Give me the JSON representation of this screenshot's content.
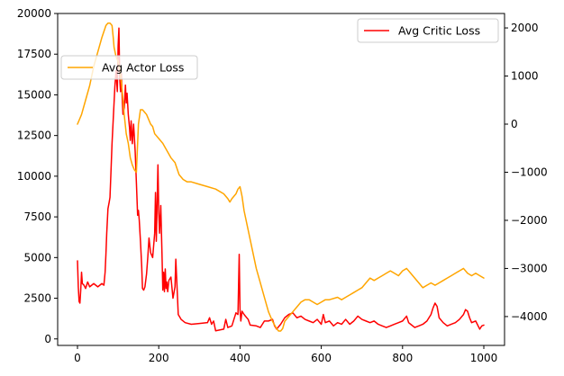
{
  "chart_data": {
    "type": "line",
    "x_range": [
      0,
      1000
    ],
    "x_ticks": [
      0,
      200,
      400,
      600,
      800,
      1000
    ],
    "left_axis": {
      "range": [
        -400,
        20000
      ],
      "ticks": [
        0,
        2500,
        5000,
        7500,
        10000,
        12500,
        15000,
        17500,
        20000
      ]
    },
    "right_axis": {
      "range": [
        -4600,
        2300
      ],
      "ticks": [
        -4000,
        -3000,
        -2000,
        -1000,
        0,
        1000,
        2000
      ]
    },
    "series": [
      {
        "name": "Avg Critic Loss",
        "axis": "left",
        "color": "#ff0000",
        "legend_position": "top-right",
        "points": [
          [
            0,
            4800
          ],
          [
            2,
            3200
          ],
          [
            4,
            2300
          ],
          [
            6,
            2200
          ],
          [
            8,
            3000
          ],
          [
            10,
            4100
          ],
          [
            12,
            3400
          ],
          [
            16,
            3300
          ],
          [
            20,
            3100
          ],
          [
            25,
            3500
          ],
          [
            30,
            3200
          ],
          [
            40,
            3400
          ],
          [
            50,
            3200
          ],
          [
            60,
            3400
          ],
          [
            65,
            3300
          ],
          [
            68,
            4100
          ],
          [
            70,
            5200
          ],
          [
            72,
            6500
          ],
          [
            75,
            8000
          ],
          [
            78,
            8400
          ],
          [
            80,
            8700
          ],
          [
            82,
            10000
          ],
          [
            85,
            12000
          ],
          [
            88,
            13500
          ],
          [
            90,
            14500
          ],
          [
            92,
            15500
          ],
          [
            95,
            16500
          ],
          [
            98,
            15200
          ],
          [
            100,
            18000
          ],
          [
            102,
            19100
          ],
          [
            104,
            16000
          ],
          [
            106,
            15200
          ],
          [
            108,
            16300
          ],
          [
            110,
            14800
          ],
          [
            112,
            13800
          ],
          [
            115,
            14200
          ],
          [
            118,
            15600
          ],
          [
            120,
            14500
          ],
          [
            122,
            15100
          ],
          [
            125,
            13800
          ],
          [
            128,
            13000
          ],
          [
            130,
            12200
          ],
          [
            132,
            13400
          ],
          [
            135,
            12000
          ],
          [
            138,
            13200
          ],
          [
            140,
            12400
          ],
          [
            142,
            11500
          ],
          [
            145,
            9600
          ],
          [
            148,
            7600
          ],
          [
            150,
            7900
          ],
          [
            152,
            7300
          ],
          [
            155,
            6000
          ],
          [
            158,
            4500
          ],
          [
            160,
            3100
          ],
          [
            163,
            3000
          ],
          [
            166,
            3200
          ],
          [
            170,
            4000
          ],
          [
            173,
            5000
          ],
          [
            176,
            6200
          ],
          [
            180,
            5300
          ],
          [
            185,
            5000
          ],
          [
            190,
            6500
          ],
          [
            192,
            9000
          ],
          [
            194,
            6000
          ],
          [
            196,
            8300
          ],
          [
            198,
            10700
          ],
          [
            200,
            7800
          ],
          [
            202,
            6500
          ],
          [
            205,
            8200
          ],
          [
            208,
            5200
          ],
          [
            210,
            3000
          ],
          [
            212,
            4100
          ],
          [
            214,
            2900
          ],
          [
            216,
            4300
          ],
          [
            218,
            3100
          ],
          [
            220,
            3500
          ],
          [
            222,
            2900
          ],
          [
            225,
            3600
          ],
          [
            230,
            3800
          ],
          [
            235,
            2500
          ],
          [
            240,
            3200
          ],
          [
            242,
            4900
          ],
          [
            245,
            3200
          ],
          [
            248,
            1500
          ],
          [
            255,
            1200
          ],
          [
            265,
            1000
          ],
          [
            280,
            900
          ],
          [
            300,
            950
          ],
          [
            320,
            1000
          ],
          [
            325,
            1300
          ],
          [
            330,
            900
          ],
          [
            335,
            1100
          ],
          [
            340,
            500
          ],
          [
            360,
            600
          ],
          [
            365,
            1200
          ],
          [
            370,
            700
          ],
          [
            380,
            800
          ],
          [
            385,
            1200
          ],
          [
            390,
            1600
          ],
          [
            395,
            1500
          ],
          [
            398,
            5200
          ],
          [
            400,
            1800
          ],
          [
            402,
            1100
          ],
          [
            405,
            1700
          ],
          [
            410,
            1500
          ],
          [
            420,
            1200
          ],
          [
            425,
            850
          ],
          [
            440,
            800
          ],
          [
            450,
            700
          ],
          [
            460,
            1100
          ],
          [
            470,
            1100
          ],
          [
            480,
            1200
          ],
          [
            485,
            800
          ],
          [
            490,
            600
          ],
          [
            500,
            900
          ],
          [
            510,
            1300
          ],
          [
            520,
            1500
          ],
          [
            530,
            1600
          ],
          [
            540,
            1300
          ],
          [
            550,
            1400
          ],
          [
            560,
            1200
          ],
          [
            570,
            1100
          ],
          [
            580,
            1000
          ],
          [
            590,
            1200
          ],
          [
            600,
            900
          ],
          [
            605,
            1500
          ],
          [
            610,
            1000
          ],
          [
            620,
            1100
          ],
          [
            630,
            800
          ],
          [
            640,
            1000
          ],
          [
            650,
            900
          ],
          [
            660,
            1200
          ],
          [
            670,
            900
          ],
          [
            680,
            1100
          ],
          [
            690,
            1400
          ],
          [
            700,
            1200
          ],
          [
            710,
            1100
          ],
          [
            720,
            1000
          ],
          [
            730,
            1100
          ],
          [
            740,
            900
          ],
          [
            750,
            800
          ],
          [
            760,
            700
          ],
          [
            770,
            800
          ],
          [
            780,
            900
          ],
          [
            790,
            1000
          ],
          [
            800,
            1100
          ],
          [
            810,
            1400
          ],
          [
            815,
            1000
          ],
          [
            820,
            900
          ],
          [
            830,
            700
          ],
          [
            840,
            800
          ],
          [
            850,
            900
          ],
          [
            860,
            1100
          ],
          [
            870,
            1500
          ],
          [
            875,
            1900
          ],
          [
            880,
            2200
          ],
          [
            885,
            2000
          ],
          [
            890,
            1300
          ],
          [
            900,
            1000
          ],
          [
            910,
            800
          ],
          [
            920,
            900
          ],
          [
            930,
            1000
          ],
          [
            940,
            1200
          ],
          [
            950,
            1500
          ],
          [
            955,
            1800
          ],
          [
            960,
            1700
          ],
          [
            965,
            1300
          ],
          [
            970,
            1000
          ],
          [
            980,
            1100
          ],
          [
            990,
            600
          ],
          [
            995,
            800
          ],
          [
            1000,
            850
          ]
        ]
      },
      {
        "name": "Avg Actor Loss",
        "axis": "right",
        "color": "#ffa500",
        "legend_position": "upper-left",
        "points": [
          [
            0,
            0
          ],
          [
            10,
            200
          ],
          [
            20,
            500
          ],
          [
            30,
            800
          ],
          [
            40,
            1200
          ],
          [
            50,
            1500
          ],
          [
            60,
            1800
          ],
          [
            70,
            2050
          ],
          [
            75,
            2100
          ],
          [
            80,
            2100
          ],
          [
            85,
            2050
          ],
          [
            88,
            1800
          ],
          [
            90,
            1600
          ],
          [
            95,
            1400
          ],
          [
            100,
            1300
          ],
          [
            105,
            1100
          ],
          [
            110,
            700
          ],
          [
            115,
            200
          ],
          [
            120,
            -200
          ],
          [
            125,
            -400
          ],
          [
            130,
            -700
          ],
          [
            135,
            -850
          ],
          [
            140,
            -950
          ],
          [
            145,
            -1000
          ],
          [
            150,
            0
          ],
          [
            155,
            300
          ],
          [
            160,
            300
          ],
          [
            165,
            250
          ],
          [
            170,
            200
          ],
          [
            175,
            100
          ],
          [
            180,
            0
          ],
          [
            185,
            -50
          ],
          [
            190,
            -200
          ],
          [
            200,
            -300
          ],
          [
            210,
            -400
          ],
          [
            220,
            -550
          ],
          [
            230,
            -700
          ],
          [
            240,
            -800
          ],
          [
            250,
            -1050
          ],
          [
            260,
            -1150
          ],
          [
            270,
            -1200
          ],
          [
            280,
            -1200
          ],
          [
            300,
            -1250
          ],
          [
            320,
            -1300
          ],
          [
            340,
            -1350
          ],
          [
            360,
            -1450
          ],
          [
            370,
            -1550
          ],
          [
            375,
            -1620
          ],
          [
            380,
            -1550
          ],
          [
            390,
            -1450
          ],
          [
            395,
            -1350
          ],
          [
            400,
            -1300
          ],
          [
            405,
            -1500
          ],
          [
            410,
            -1800
          ],
          [
            420,
            -2200
          ],
          [
            430,
            -2600
          ],
          [
            440,
            -3000
          ],
          [
            450,
            -3300
          ],
          [
            460,
            -3600
          ],
          [
            470,
            -3900
          ],
          [
            480,
            -4100
          ],
          [
            490,
            -4250
          ],
          [
            495,
            -4300
          ],
          [
            500,
            -4300
          ],
          [
            505,
            -4250
          ],
          [
            510,
            -4100
          ],
          [
            520,
            -4000
          ],
          [
            530,
            -3900
          ],
          [
            540,
            -3800
          ],
          [
            550,
            -3700
          ],
          [
            560,
            -3650
          ],
          [
            570,
            -3650
          ],
          [
            580,
            -3700
          ],
          [
            590,
            -3750
          ],
          [
            600,
            -3700
          ],
          [
            610,
            -3650
          ],
          [
            620,
            -3650
          ],
          [
            640,
            -3600
          ],
          [
            650,
            -3650
          ],
          [
            660,
            -3600
          ],
          [
            670,
            -3550
          ],
          [
            680,
            -3500
          ],
          [
            690,
            -3450
          ],
          [
            700,
            -3400
          ],
          [
            710,
            -3300
          ],
          [
            720,
            -3200
          ],
          [
            730,
            -3250
          ],
          [
            740,
            -3200
          ],
          [
            750,
            -3150
          ],
          [
            760,
            -3100
          ],
          [
            770,
            -3050
          ],
          [
            780,
            -3100
          ],
          [
            790,
            -3150
          ],
          [
            800,
            -3050
          ],
          [
            810,
            -3000
          ],
          [
            820,
            -3100
          ],
          [
            830,
            -3200
          ],
          [
            840,
            -3300
          ],
          [
            850,
            -3400
          ],
          [
            860,
            -3350
          ],
          [
            870,
            -3300
          ],
          [
            880,
            -3350
          ],
          [
            890,
            -3300
          ],
          [
            900,
            -3250
          ],
          [
            910,
            -3200
          ],
          [
            920,
            -3150
          ],
          [
            930,
            -3100
          ],
          [
            940,
            -3050
          ],
          [
            950,
            -3000
          ],
          [
            960,
            -3100
          ],
          [
            970,
            -3150
          ],
          [
            980,
            -3100
          ],
          [
            990,
            -3150
          ],
          [
            1000,
            -3200
          ]
        ]
      }
    ]
  }
}
